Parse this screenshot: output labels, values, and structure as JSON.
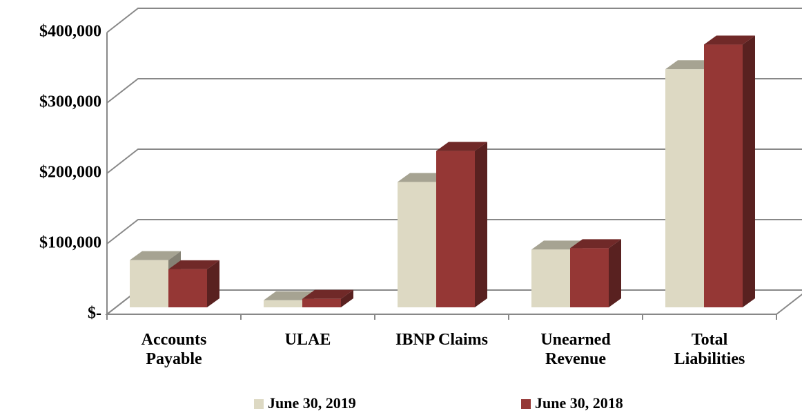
{
  "chart_data": {
    "type": "bar3d",
    "categories": [
      "Accounts Payable",
      "ULAE",
      "IBNP Claims",
      "Unearned Revenue",
      "Total Liabilities"
    ],
    "series": [
      {
        "name": "June 30, 2019",
        "color": "#ddd9c3",
        "values": [
          67000,
          10000,
          178000,
          82000,
          338000
        ]
      },
      {
        "name": "June 30, 2018",
        "color": "#953735",
        "values": [
          54000,
          12000,
          222000,
          84000,
          373000
        ]
      }
    ],
    "ylim": [
      0,
      400000
    ],
    "yticks": [
      {
        "value": 0,
        "label": "$-"
      },
      {
        "value": 100000,
        "label": "$100,000"
      },
      {
        "value": 200000,
        "label": "$200,000"
      },
      {
        "value": 300000,
        "label": "$300,000"
      },
      {
        "value": 400000,
        "label": "$400,000"
      }
    ],
    "grid": true,
    "legend": "bottom"
  }
}
